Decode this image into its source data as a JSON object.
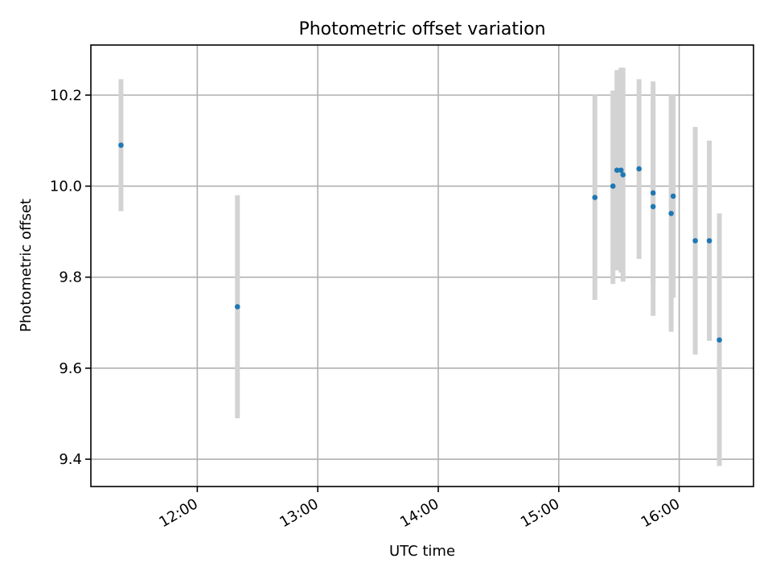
{
  "chart_data": {
    "type": "scatter",
    "title": "Photometric offset variation",
    "xlabel": "UTC time",
    "ylabel": "Photometric offset",
    "grid": true,
    "xlim": [
      "11:07",
      "16:37"
    ],
    "ylim": [
      9.34,
      10.31
    ],
    "xticks": [
      "12:00",
      "13:00",
      "14:00",
      "15:00",
      "16:00"
    ],
    "yticks": [
      9.4,
      9.6,
      9.8,
      10.0,
      10.2
    ],
    "colors": {
      "point": "#1f77b4",
      "errorbar": "#d3d3d3"
    },
    "points": [
      {
        "x": "11:22",
        "y": 10.09,
        "yerr_low": 9.945,
        "yerr_high": 10.235
      },
      {
        "x": "12:20",
        "y": 9.735,
        "yerr_low": 9.49,
        "yerr_high": 9.98
      },
      {
        "x": "15:18",
        "y": 9.975,
        "yerr_low": 9.75,
        "yerr_high": 10.2
      },
      {
        "x": "15:27",
        "y": 10.0,
        "yerr_low": 9.785,
        "yerr_high": 10.21
      },
      {
        "x": "15:29",
        "y": 10.035,
        "yerr_low": 9.815,
        "yerr_high": 10.255
      },
      {
        "x": "15:31",
        "y": 10.035,
        "yerr_low": 9.81,
        "yerr_high": 10.26
      },
      {
        "x": "15:32",
        "y": 10.025,
        "yerr_low": 9.79,
        "yerr_high": 10.26
      },
      {
        "x": "15:40",
        "y": 10.038,
        "yerr_low": 9.84,
        "yerr_high": 10.235
      },
      {
        "x": "15:47",
        "y": 9.985,
        "yerr_low": 9.785,
        "yerr_high": 10.19
      },
      {
        "x": "15:47",
        "y": 9.955,
        "yerr_low": 9.715,
        "yerr_high": 10.23
      },
      {
        "x": "15:56",
        "y": 9.94,
        "yerr_low": 9.68,
        "yerr_high": 10.2
      },
      {
        "x": "15:57",
        "y": 9.978,
        "yerr_low": 9.755,
        "yerr_high": 10.2
      },
      {
        "x": "16:08",
        "y": 9.88,
        "yerr_low": 9.63,
        "yerr_high": 10.13
      },
      {
        "x": "16:15",
        "y": 9.88,
        "yerr_low": 9.66,
        "yerr_high": 10.1
      },
      {
        "x": "16:20",
        "y": 9.662,
        "yerr_low": 9.385,
        "yerr_high": 9.94
      }
    ]
  }
}
